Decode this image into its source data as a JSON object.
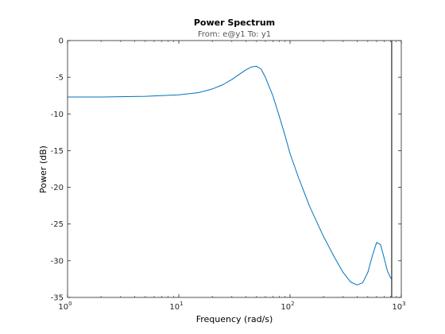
{
  "chart_data": {
    "type": "line",
    "title": "Power Spectrum",
    "subtitle": "From: e@y1  To: y1",
    "xlabel": "Frequency  (rad/s)",
    "ylabel": "Power (dB)",
    "xscale": "log",
    "xlim": [
      1,
      1000
    ],
    "ylim": [
      -35,
      0
    ],
    "grid": false,
    "x_ticks": [
      1,
      10,
      100,
      1000
    ],
    "x_tick_labels": [
      {
        "base": "10",
        "exp": "0"
      },
      {
        "base": "10",
        "exp": "1"
      },
      {
        "base": "10",
        "exp": "2"
      },
      {
        "base": "10",
        "exp": "3"
      }
    ],
    "y_ticks": [
      0,
      -5,
      -10,
      -15,
      -20,
      -25,
      -30,
      -35
    ],
    "y_tick_labels": [
      "0",
      "-5",
      "-10",
      "-15",
      "-20",
      "-25",
      "-30",
      "-35"
    ],
    "line_color": "#0072BD",
    "nyquist_line_x": 820,
    "nyquist_line_color": "#000000",
    "series": [
      {
        "x": [
          1,
          2,
          5,
          10,
          15,
          20,
          25,
          30,
          35,
          40,
          45,
          50,
          55,
          60,
          70,
          80,
          90,
          100,
          120,
          150,
          200,
          250,
          300,
          350,
          400,
          450,
          500,
          550,
          600,
          650,
          700,
          750,
          800,
          820
        ],
        "y": [
          -7.7,
          -7.7,
          -7.6,
          -7.4,
          -7.1,
          -6.6,
          -6.0,
          -5.3,
          -4.6,
          -4.0,
          -3.6,
          -3.5,
          -3.9,
          -5.0,
          -7.5,
          -10.3,
          -12.9,
          -15.4,
          -18.8,
          -22.6,
          -26.7,
          -29.5,
          -31.6,
          -32.9,
          -33.3,
          -33.0,
          -31.6,
          -29.3,
          -27.5,
          -27.8,
          -29.6,
          -31.4,
          -32.3,
          -32.5
        ]
      }
    ]
  }
}
